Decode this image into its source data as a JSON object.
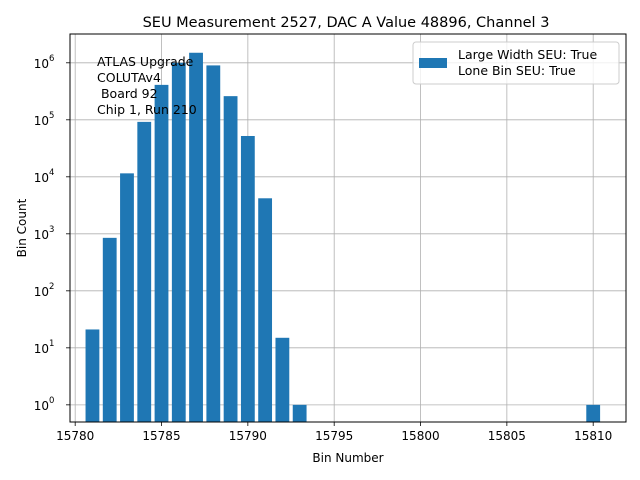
{
  "chart_data": {
    "type": "bar",
    "title": "SEU Measurement 2527, DAC A Value 48896, Channel 3",
    "xlabel": "Bin Number",
    "ylabel": "Bin Count",
    "yscale": "log",
    "xlim": [
      15779.7,
      15811.9
    ],
    "ylim": [
      0.5,
      3200000
    ],
    "grid": true,
    "bar_color": "#1f77b4",
    "x_ticks": [
      {
        "value": 15780,
        "label": "15780"
      },
      {
        "value": 15785,
        "label": "15785"
      },
      {
        "value": 15790,
        "label": "15790"
      },
      {
        "value": 15795,
        "label": "15795"
      },
      {
        "value": 15800,
        "label": "15800"
      },
      {
        "value": 15805,
        "label": "15805"
      },
      {
        "value": 15810,
        "label": "15810"
      }
    ],
    "y_ticks": [
      {
        "value": 1,
        "base": "10",
        "exp": "0"
      },
      {
        "value": 10,
        "base": "10",
        "exp": "1"
      },
      {
        "value": 100,
        "base": "10",
        "exp": "2"
      },
      {
        "value": 1000,
        "base": "10",
        "exp": "3"
      },
      {
        "value": 10000,
        "base": "10",
        "exp": "4"
      },
      {
        "value": 100000,
        "base": "10",
        "exp": "5"
      },
      {
        "value": 1000000,
        "base": "10",
        "exp": "6"
      }
    ],
    "series": [
      {
        "x": [
          15781,
          15782,
          15783,
          15784,
          15785,
          15786,
          15787,
          15788,
          15789,
          15790,
          15791,
          15792,
          15793,
          15810
        ],
        "values": [
          21,
          850,
          11500,
          92000,
          410000,
          1000000,
          1500000,
          900000,
          260000,
          52000,
          4200,
          15,
          1,
          1
        ]
      }
    ],
    "legend": {
      "placement": "top-right",
      "lines": [
        "Large Width SEU: True",
        "Lone Bin SEU: True"
      ]
    },
    "annotation": {
      "lines": [
        "ATLAS Upgrade",
        "COLUTAv4",
        " Board 92",
        "Chip 1, Run 210"
      ]
    }
  }
}
